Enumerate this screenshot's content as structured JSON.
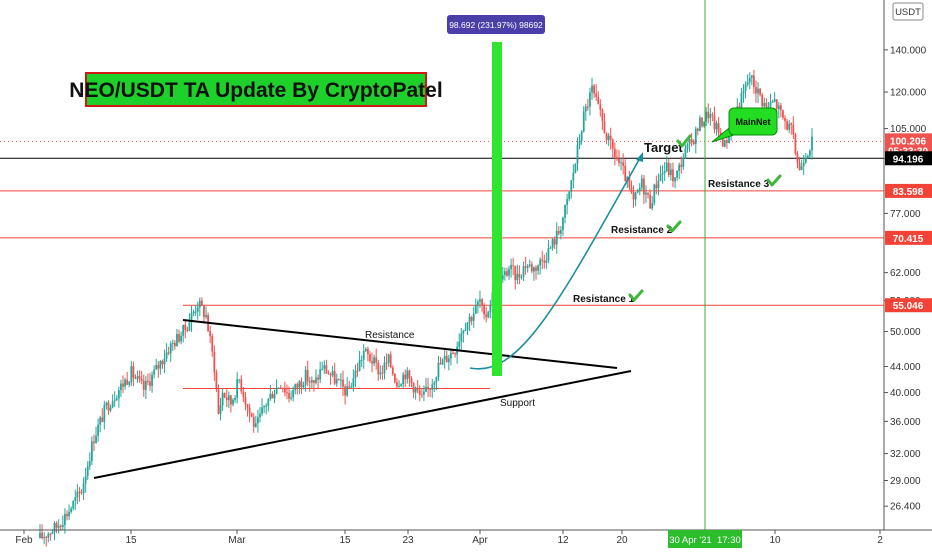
{
  "chart_data": {
    "type": "candlestick",
    "title": "NEO/USDT TA Update By CryptoPatel",
    "currency_badge": "USDT",
    "y_scale": "log",
    "ylim": [
      24.2,
      168
    ],
    "x_ticks": [
      "Feb",
      "15",
      "Mar",
      "15",
      "23",
      "Apr",
      "12",
      "20",
      "10",
      "2"
    ],
    "y_ticks": [
      "140.000",
      "120.000",
      "105.000",
      "94.000",
      "77.000",
      "62.000",
      "56.000",
      "50.000",
      "44.000",
      "40.000",
      "36.000",
      "32.000",
      "29.000",
      "26.400"
    ],
    "price_labels": [
      {
        "text": "100.206",
        "sub": "05:33:30",
        "color": "#ef5350"
      },
      {
        "text": "94.196",
        "color": "#000000"
      },
      {
        "text": "83.598",
        "color": "#f44336"
      },
      {
        "text": "70.415",
        "color": "#f44336"
      },
      {
        "text": "55.046",
        "color": "#f44336"
      }
    ],
    "horizontal_levels": [
      {
        "value": 94.196,
        "color": "#000000"
      },
      {
        "value": 83.598,
        "color": "#f44336"
      },
      {
        "value": 70.415,
        "color": "#f44336"
      },
      {
        "value": 55.046,
        "color": "#f44336"
      }
    ],
    "cursor_label": "30 Apr '21  17:30",
    "measure_label": "98.692 (231.97%) 98692",
    "annotations": {
      "resistance": "Resistance",
      "support": "Support",
      "target": "Target",
      "mainnet": "MainNet",
      "resistance_1": "Resistance 1",
      "resistance_2": "Resistance 2",
      "resistance_3": "Resistance 3"
    },
    "price_path": [
      [
        0,
        23.5
      ],
      [
        8,
        24.5
      ],
      [
        14,
        26
      ],
      [
        20,
        28
      ],
      [
        26,
        34
      ],
      [
        32,
        38
      ],
      [
        38,
        40.5
      ],
      [
        44,
        43
      ],
      [
        50,
        40.5
      ],
      [
        56,
        43.5
      ],
      [
        62,
        47
      ],
      [
        70,
        50.5
      ],
      [
        76,
        55.5
      ],
      [
        80,
        53
      ],
      [
        84,
        44
      ],
      [
        86,
        37
      ],
      [
        88,
        40
      ],
      [
        92,
        38.5
      ],
      [
        96,
        42
      ],
      [
        100,
        38
      ],
      [
        104,
        35
      ],
      [
        108,
        38
      ],
      [
        112,
        40
      ],
      [
        116,
        41.5
      ],
      [
        120,
        39.5
      ],
      [
        124,
        41
      ],
      [
        128,
        42.5
      ],
      [
        132,
        41
      ],
      [
        136,
        44
      ],
      [
        142,
        42
      ],
      [
        148,
        40
      ],
      [
        152,
        43
      ],
      [
        156,
        46.5
      ],
      [
        160,
        45
      ],
      [
        164,
        43
      ],
      [
        168,
        45
      ],
      [
        172,
        41.5
      ],
      [
        176,
        43
      ],
      [
        180,
        41
      ],
      [
        184,
        39
      ],
      [
        188,
        41
      ],
      [
        192,
        44
      ],
      [
        196,
        45.5
      ],
      [
        200,
        47
      ],
      [
        204,
        51
      ],
      [
        208,
        53
      ],
      [
        212,
        56
      ],
      [
        214,
        52
      ],
      [
        218,
        57
      ],
      [
        222,
        60
      ],
      [
        226,
        63
      ],
      [
        230,
        61
      ],
      [
        234,
        64
      ],
      [
        238,
        63
      ],
      [
        242,
        65
      ],
      [
        246,
        68
      ],
      [
        250,
        72
      ],
      [
        254,
        80
      ],
      [
        258,
        93
      ],
      [
        262,
        110
      ],
      [
        266,
        121
      ],
      [
        270,
        110
      ],
      [
        274,
        100
      ],
      [
        278,
        94
      ],
      [
        282,
        88
      ],
      [
        286,
        80
      ],
      [
        290,
        86
      ],
      [
        294,
        80
      ],
      [
        298,
        88
      ],
      [
        302,
        91
      ],
      [
        306,
        87
      ],
      [
        310,
        95
      ],
      [
        314,
        100
      ],
      [
        318,
        107
      ],
      [
        322,
        111
      ],
      [
        326,
        105
      ],
      [
        330,
        99
      ],
      [
        334,
        109
      ],
      [
        338,
        117
      ],
      [
        342,
        127
      ],
      [
        346,
        120
      ],
      [
        350,
        113
      ],
      [
        354,
        116
      ],
      [
        358,
        109
      ],
      [
        362,
        104
      ],
      [
        366,
        90
      ],
      [
        368,
        95
      ],
      [
        372,
        100
      ]
    ]
  }
}
